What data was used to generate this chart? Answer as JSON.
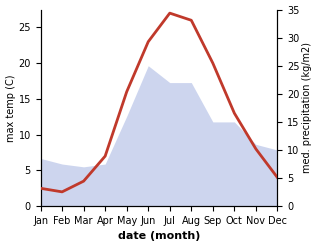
{
  "months": [
    "Jan",
    "Feb",
    "Mar",
    "Apr",
    "May",
    "Jun",
    "Jul",
    "Aug",
    "Sep",
    "Oct",
    "Nov",
    "Dec"
  ],
  "temperature": [
    2.5,
    2.0,
    3.5,
    7.0,
    16.0,
    23.0,
    27.0,
    26.0,
    20.0,
    13.0,
    8.0,
    4.0
  ],
  "precipitation": [
    8.5,
    7.5,
    7.0,
    7.5,
    16.0,
    25.0,
    22.0,
    22.0,
    15.0,
    15.0,
    11.0,
    10.0
  ],
  "temp_color": "#c0392b",
  "precip_fill_color": "#b8c4e8",
  "temp_ylim": [
    0,
    27.5
  ],
  "precip_ylim": [
    0,
    35
  ],
  "temp_yticks": [
    0,
    5,
    10,
    15,
    20,
    25
  ],
  "precip_yticks": [
    0,
    5,
    10,
    15,
    20,
    25,
    30,
    35
  ],
  "xlabel": "date (month)",
  "ylabel_left": "max temp (C)",
  "ylabel_right": "med. precipitation (kg/m2)",
  "background_color": "#ffffff",
  "linewidth": 2.0,
  "label_fontsize": 7,
  "tick_fontsize": 7,
  "xlabel_fontsize": 8
}
